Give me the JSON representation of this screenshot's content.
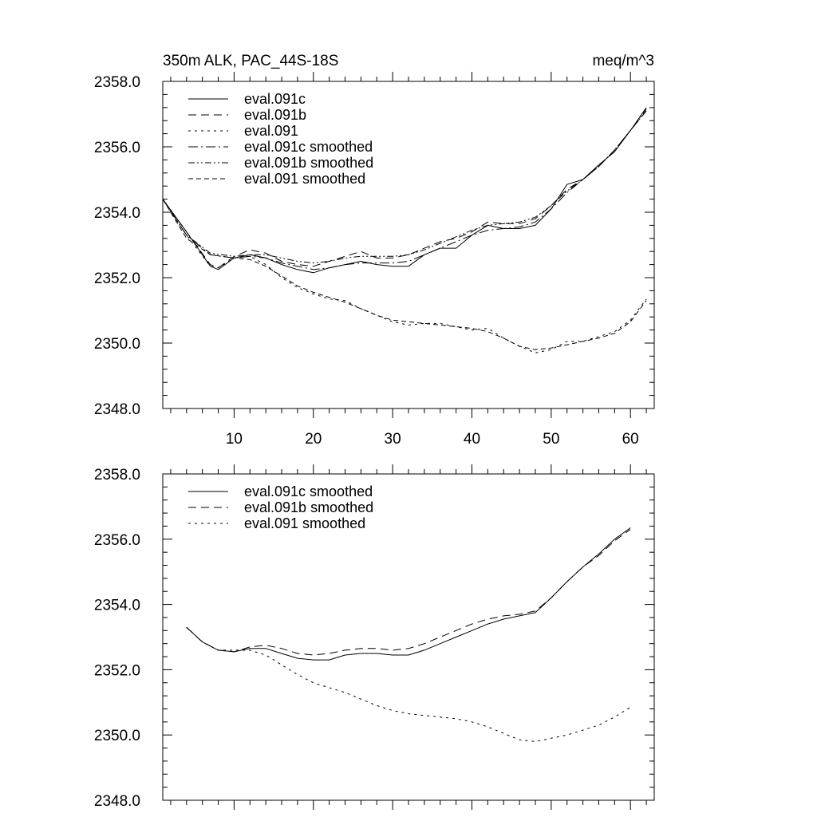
{
  "figure": {
    "title_left": "350m ALK, PAC_44S-18S",
    "title_right": "meq/m^3"
  },
  "colors": {
    "line": "#000000",
    "background": "#ffffff"
  },
  "chart_data": [
    {
      "type": "line",
      "title": "350m ALK, PAC_44S-18S",
      "units": "meq/m^3",
      "xlim": [
        1,
        63
      ],
      "ylim": [
        2348,
        2358
      ],
      "x_ticks": [
        10,
        20,
        30,
        40,
        50,
        60
      ],
      "x_tick_labels": [
        "10",
        "20",
        "30",
        "40",
        "50",
        "60"
      ],
      "y_ticks": [
        2348,
        2350,
        2352,
        2354,
        2356,
        2358
      ],
      "y_tick_labels": [
        "2348.0",
        "2350.0",
        "2352.0",
        "2354.0",
        "2356.0",
        "2358.0"
      ],
      "legend_position": "top-left",
      "series": [
        {
          "name": "eval.091c",
          "dash": "",
          "x": [
            1,
            4,
            7,
            8,
            10,
            12,
            14,
            16,
            18,
            20,
            22,
            24,
            26,
            28,
            30,
            32,
            34,
            36,
            38,
            40,
            42,
            44,
            46,
            48,
            50,
            52,
            54,
            56,
            58,
            60,
            62
          ],
          "y": [
            2354.4,
            2353.4,
            2352.35,
            2352.25,
            2352.6,
            2352.7,
            2352.6,
            2352.4,
            2352.25,
            2352.15,
            2352.3,
            2352.4,
            2352.5,
            2352.4,
            2352.35,
            2352.35,
            2352.7,
            2352.9,
            2352.9,
            2353.3,
            2353.6,
            2353.5,
            2353.5,
            2353.6,
            2354.1,
            2354.85,
            2355.0,
            2355.45,
            2355.85,
            2356.5,
            2357.2
          ]
        },
        {
          "name": "eval.091b",
          "dash": "10 6",
          "x": [
            1,
            4,
            7,
            8,
            10,
            12,
            14,
            16,
            18,
            20,
            22,
            24,
            26,
            28,
            30,
            32,
            34,
            36,
            38,
            40,
            42,
            44,
            46,
            48,
            50,
            52,
            54,
            56,
            58,
            60,
            62
          ],
          "y": [
            2354.4,
            2353.4,
            2352.4,
            2352.3,
            2352.65,
            2352.85,
            2352.75,
            2352.5,
            2352.4,
            2352.35,
            2352.5,
            2352.65,
            2352.8,
            2352.6,
            2352.6,
            2352.7,
            2352.9,
            2353.1,
            2353.2,
            2353.4,
            2353.7,
            2353.65,
            2353.65,
            2353.8,
            2354.2,
            2354.7,
            2355.0,
            2355.4,
            2355.9,
            2356.5,
            2357.1
          ]
        },
        {
          "name": "eval.091",
          "dash": "3 5",
          "x": [
            1,
            4,
            7,
            8,
            10,
            12,
            14,
            16,
            18,
            20,
            22,
            24,
            26,
            28,
            30,
            32,
            34,
            36,
            38,
            40,
            42,
            44,
            46,
            48,
            50,
            52,
            54,
            56,
            58,
            60,
            62
          ],
          "y": [
            2354.4,
            2353.3,
            2352.35,
            2352.3,
            2352.6,
            2352.65,
            2352.4,
            2352.0,
            2351.7,
            2351.5,
            2351.35,
            2351.3,
            2351.05,
            2350.85,
            2350.65,
            2350.55,
            2350.6,
            2350.6,
            2350.5,
            2350.4,
            2350.45,
            2350.15,
            2349.9,
            2349.7,
            2349.8,
            2350.05,
            2350.05,
            2350.2,
            2350.35,
            2350.7,
            2351.35
          ]
        },
        {
          "name": "eval.091c smoothed",
          "dash": "12 4 2 4",
          "x": [
            1,
            4,
            7,
            10,
            12,
            14,
            16,
            18,
            20,
            22,
            24,
            26,
            28,
            30,
            32,
            34,
            36,
            38,
            40,
            42,
            44,
            46,
            48,
            50,
            52,
            54,
            56,
            58,
            60,
            62
          ],
          "y": [
            2354.4,
            2353.3,
            2352.7,
            2352.6,
            2352.65,
            2352.6,
            2352.45,
            2352.35,
            2352.25,
            2352.3,
            2352.4,
            2352.45,
            2352.45,
            2352.45,
            2352.5,
            2352.7,
            2352.9,
            2353.1,
            2353.3,
            2353.45,
            2353.5,
            2353.55,
            2353.7,
            2354.1,
            2354.6,
            2355.0,
            2355.4,
            2355.9,
            2356.5,
            2357.15
          ]
        },
        {
          "name": "eval.091b smoothed",
          "dash": "8 3 2 3 2 3",
          "x": [
            1,
            4,
            7,
            10,
            12,
            14,
            16,
            18,
            20,
            22,
            24,
            26,
            28,
            30,
            32,
            34,
            36,
            38,
            40,
            42,
            44,
            46,
            48,
            50,
            52,
            54,
            56,
            58,
            60,
            62
          ],
          "y": [
            2354.4,
            2353.3,
            2352.75,
            2352.65,
            2352.7,
            2352.7,
            2352.6,
            2352.5,
            2352.45,
            2352.5,
            2352.6,
            2352.65,
            2352.65,
            2352.65,
            2352.7,
            2352.85,
            2353.05,
            2353.25,
            2353.45,
            2353.6,
            2353.65,
            2353.7,
            2353.85,
            2354.2,
            2354.65,
            2355.0,
            2355.4,
            2355.9,
            2356.5,
            2357.1
          ]
        },
        {
          "name": "eval.091 smoothed",
          "dash": "6 4",
          "x": [
            1,
            4,
            7,
            10,
            12,
            14,
            16,
            18,
            20,
            22,
            24,
            26,
            28,
            30,
            32,
            34,
            36,
            38,
            40,
            42,
            44,
            46,
            48,
            50,
            52,
            54,
            56,
            58,
            60,
            62
          ],
          "y": [
            2354.4,
            2353.2,
            2352.7,
            2352.6,
            2352.55,
            2352.35,
            2352.05,
            2351.75,
            2351.55,
            2351.4,
            2351.25,
            2351.05,
            2350.85,
            2350.7,
            2350.65,
            2350.6,
            2350.55,
            2350.5,
            2350.45,
            2350.35,
            2350.15,
            2349.9,
            2349.8,
            2349.85,
            2349.95,
            2350.05,
            2350.15,
            2350.3,
            2350.65,
            2351.3
          ]
        }
      ]
    },
    {
      "type": "line",
      "xlim": [
        1,
        63
      ],
      "ylim": [
        2348,
        2358
      ],
      "x_ticks": [
        10,
        20,
        30,
        40,
        50,
        60
      ],
      "x_tick_labels": [],
      "y_ticks": [
        2348,
        2350,
        2352,
        2354,
        2356,
        2358
      ],
      "y_tick_labels": [
        "2348.0",
        "2350.0",
        "2352.0",
        "2354.0",
        "2356.0",
        "2358.0"
      ],
      "legend_position": "top-left",
      "series": [
        {
          "name": "eval.091c smoothed",
          "dash": "",
          "x": [
            4,
            6,
            8,
            10,
            12,
            14,
            16,
            18,
            20,
            22,
            24,
            26,
            28,
            30,
            32,
            34,
            36,
            38,
            40,
            42,
            44,
            46,
            48,
            50,
            52,
            54,
            56,
            58,
            60
          ],
          "y": [
            2353.3,
            2352.85,
            2352.6,
            2352.55,
            2352.65,
            2352.65,
            2352.5,
            2352.35,
            2352.3,
            2352.3,
            2352.45,
            2352.5,
            2352.5,
            2352.45,
            2352.45,
            2352.6,
            2352.8,
            2353.0,
            2353.2,
            2353.4,
            2353.55,
            2353.65,
            2353.75,
            2354.2,
            2354.7,
            2355.15,
            2355.55,
            2356.0,
            2356.35
          ]
        },
        {
          "name": "eval.091b smoothed",
          "dash": "10 6",
          "x": [
            4,
            6,
            8,
            10,
            12,
            14,
            16,
            18,
            20,
            22,
            24,
            26,
            28,
            30,
            32,
            34,
            36,
            38,
            40,
            42,
            44,
            46,
            48,
            50,
            52,
            54,
            56,
            58,
            60
          ],
          "y": [
            2353.3,
            2352.85,
            2352.6,
            2352.55,
            2352.7,
            2352.75,
            2352.65,
            2352.5,
            2352.45,
            2352.5,
            2352.6,
            2352.65,
            2352.65,
            2352.6,
            2352.65,
            2352.8,
            2353.0,
            2353.2,
            2353.4,
            2353.55,
            2353.65,
            2353.7,
            2353.8,
            2354.2,
            2354.7,
            2355.15,
            2355.5,
            2355.95,
            2356.3
          ]
        },
        {
          "name": "eval.091 smoothed",
          "dash": "3 5",
          "x": [
            4,
            6,
            8,
            10,
            12,
            14,
            16,
            18,
            20,
            22,
            24,
            26,
            28,
            30,
            32,
            34,
            36,
            38,
            40,
            42,
            44,
            46,
            48,
            50,
            52,
            54,
            56,
            58,
            60
          ],
          "y": [
            2353.3,
            2352.85,
            2352.6,
            2352.6,
            2352.6,
            2352.45,
            2352.15,
            2351.85,
            2351.6,
            2351.45,
            2351.3,
            2351.1,
            2350.9,
            2350.75,
            2350.65,
            2350.6,
            2350.55,
            2350.5,
            2350.4,
            2350.25,
            2350.05,
            2349.85,
            2349.8,
            2349.9,
            2350.0,
            2350.15,
            2350.3,
            2350.55,
            2350.85
          ]
        }
      ]
    }
  ]
}
